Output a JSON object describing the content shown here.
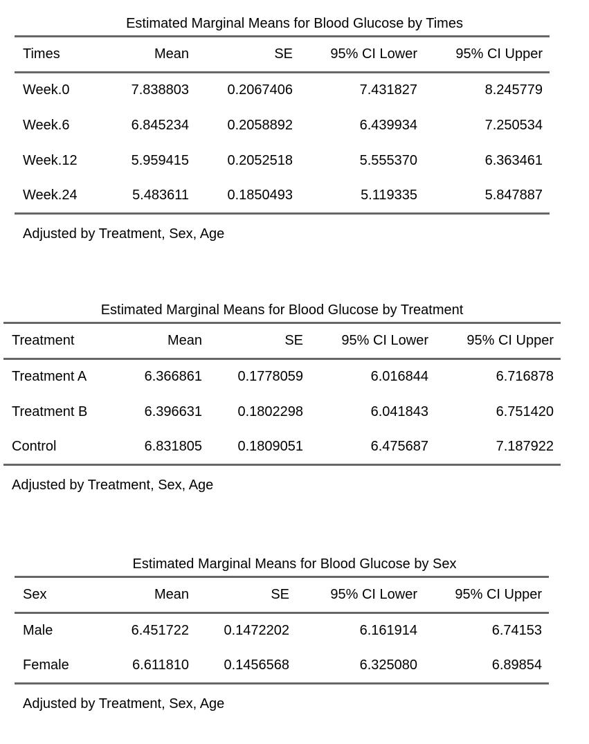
{
  "page": {
    "background": "#ffffff",
    "text_color": "#000000",
    "rule_color": "#666666"
  },
  "tables": [
    {
      "id": "times",
      "title": "Estimated Marginal Means for Blood Glucose by Times",
      "columns": [
        "Times",
        "Mean",
        "SE",
        "95% CI Lower",
        "95% CI Upper"
      ],
      "rows": [
        [
          "Week.0",
          "7.838803",
          "0.2067406",
          "7.431827",
          "8.245779"
        ],
        [
          "Week.6",
          "6.845234",
          "0.2058892",
          "6.439934",
          "7.250534"
        ],
        [
          "Week.12",
          "5.959415",
          "0.2052518",
          "5.555370",
          "6.363461"
        ],
        [
          "Week.24",
          "5.483611",
          "0.1850493",
          "5.119335",
          "5.847887"
        ]
      ],
      "footnote": "Adjusted by Treatment, Sex, Age"
    },
    {
      "id": "treatment",
      "title": "Estimated Marginal Means for Blood Glucose by Treatment",
      "columns": [
        "Treatment",
        "Mean",
        "SE",
        "95% CI Lower",
        "95% CI Upper"
      ],
      "rows": [
        [
          "Treatment A",
          "6.366861",
          "0.1778059",
          "6.016844",
          "6.716878"
        ],
        [
          "Treatment B",
          "6.396631",
          "0.1802298",
          "6.041843",
          "6.751420"
        ],
        [
          "Control",
          "6.831805",
          "0.1809051",
          "6.475687",
          "7.187922"
        ]
      ],
      "footnote": "Adjusted by Treatment, Sex, Age"
    },
    {
      "id": "sex",
      "title": "Estimated Marginal Means for Blood Glucose by Sex",
      "columns": [
        "Sex",
        "Mean",
        "SE",
        "95% CI Lower",
        "95% CI Upper"
      ],
      "rows": [
        [
          "Male",
          "6.451722",
          "0.1472202",
          "6.161914",
          "6.74153"
        ],
        [
          "Female",
          "6.611810",
          "0.1456568",
          "6.325080",
          "6.89854"
        ]
      ],
      "footnote": "Adjusted by Treatment, Sex, Age"
    }
  ]
}
